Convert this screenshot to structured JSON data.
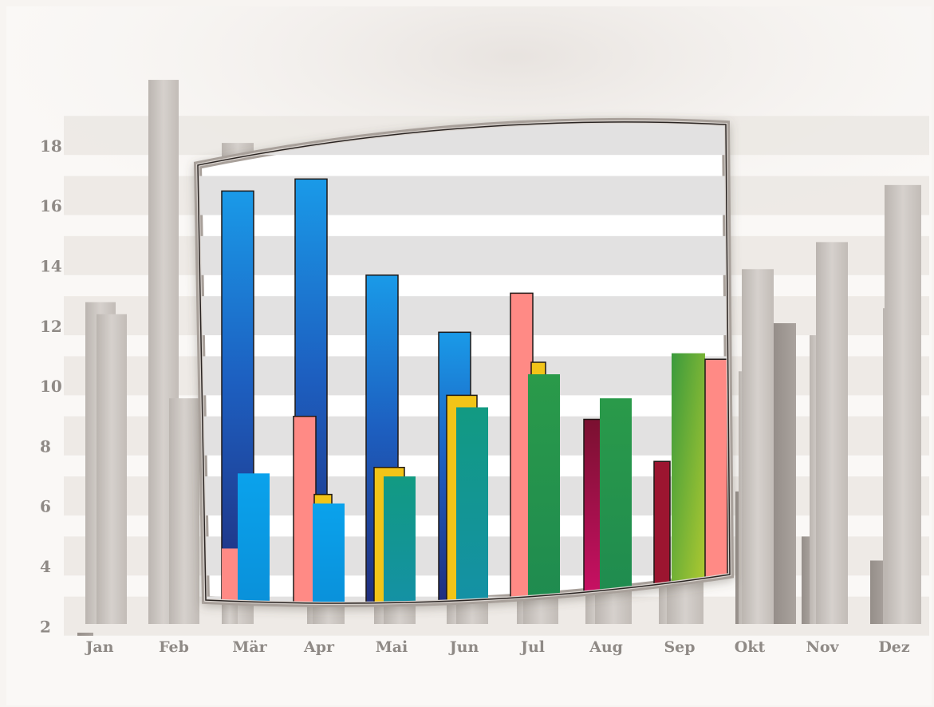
{
  "chart_data": {
    "type": "bar",
    "categories": [
      "Jan",
      "Feb",
      "Mär",
      "Apr",
      "Mai",
      "Jun",
      "Jul",
      "Aug",
      "Sep",
      "Okt",
      "Nov",
      "Dez"
    ],
    "yticks": [
      2,
      4,
      6,
      8,
      10,
      12,
      14,
      16,
      18
    ],
    "ylim": [
      1.0,
      19.2
    ],
    "grid": "horizontal bands",
    "background_bars": [
      {
        "category": "Jan",
        "values": [
          1.8,
          12.8,
          12.4
        ]
      },
      {
        "category": "Feb",
        "values": [
          2.9,
          20.2,
          9.6
        ]
      },
      {
        "category": "Mär",
        "values": [
          18.1,
          4.4
        ]
      },
      {
        "category": "Apr",
        "values": [
          7.8,
          4.6
        ]
      },
      {
        "category": "Mai",
        "values": [
          6.0,
          6.6
        ]
      },
      {
        "category": "Jun",
        "values": [
          6.4,
          8.8
        ]
      },
      {
        "category": "Jul",
        "values": [
          6.4,
          9.0
        ]
      },
      {
        "category": "Aug",
        "values": [
          6.4,
          9.6
        ]
      },
      {
        "category": "Sep",
        "values": [
          8.6,
          11.0
        ]
      },
      {
        "category": "Okt",
        "values": [
          6.5,
          10.5,
          13.9,
          12.1
        ]
      },
      {
        "category": "Nov",
        "values": [
          5.0,
          11.7,
          14.8
        ]
      },
      {
        "category": "Dez",
        "values": [
          4.2,
          12.6,
          16.7
        ]
      }
    ],
    "foreground_bars": [
      {
        "category": "Mär",
        "values": [
          16.5,
          4.6,
          7.1
        ]
      },
      {
        "category": "Apr",
        "values": [
          16.9,
          9.0,
          6.4,
          6.1
        ]
      },
      {
        "category": "Mai",
        "values": [
          13.7,
          7.3,
          7.0
        ]
      },
      {
        "category": "Jun",
        "values": [
          11.8,
          9.7,
          9.3
        ]
      },
      {
        "category": "Jul",
        "values": [
          13.1,
          10.8,
          10.4
        ]
      },
      {
        "category": "Aug",
        "values": [
          8.9,
          9.6
        ]
      },
      {
        "category": "Sep",
        "values": [
          7.5,
          11.1,
          10.9
        ]
      }
    ],
    "colors": {
      "background": "#f7f4f1",
      "gray_bar": "#c9c4c0",
      "dark_gray_bar": "#a39c97",
      "blue": "#1e63c8",
      "light_blue": "#0fa0e8",
      "salmon": "#ff8a85",
      "yellow": "#f2c418",
      "teal": "#1a9a86",
      "green": "#27934a",
      "magenta": "#b0104a",
      "crimson": "#9c1530",
      "lime": "#9cc43c",
      "label": "#8f8a86"
    }
  }
}
